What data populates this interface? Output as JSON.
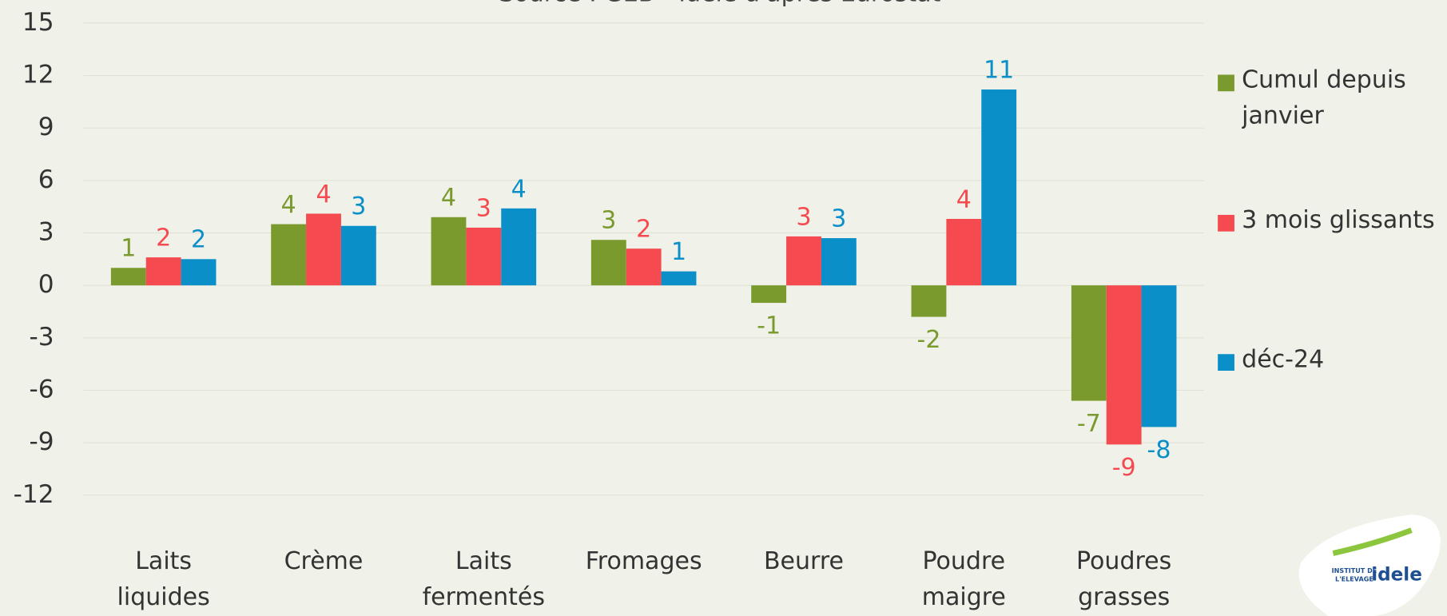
{
  "chart_data": {
    "type": "bar",
    "subtitle": "Source : GEB - Idele d'après Eurostat",
    "categories": [
      "Laits liquides",
      "Crème",
      "Laits fermentés",
      "Fromages",
      "Beurre",
      "Poudre maigre",
      "Poudres grasses"
    ],
    "series": [
      {
        "name": "Cumul depuis janvier",
        "color": "#7a9a2e",
        "values": [
          1.0,
          3.5,
          3.9,
          2.6,
          -1.0,
          -1.8,
          -6.6
        ],
        "value_labels": [
          "1",
          "4",
          "4",
          "3",
          "-1",
          "-2",
          "-7"
        ]
      },
      {
        "name": "3 mois glissants",
        "color": "#f44a50",
        "values": [
          1.6,
          4.1,
          3.3,
          2.1,
          2.8,
          3.8,
          -9.1
        ],
        "value_labels": [
          "2",
          "4",
          "3",
          "2",
          "3",
          "4",
          "-9"
        ]
      },
      {
        "name": "déc-24",
        "color": "#0b8fc8",
        "values": [
          1.5,
          3.4,
          4.4,
          0.8,
          2.7,
          11.2,
          -8.1
        ],
        "value_labels": [
          "2",
          "3",
          "4",
          "1",
          "3",
          "11",
          "-8"
        ]
      }
    ],
    "ylim": [
      -12,
      15
    ],
    "yticks": [
      -12,
      -9,
      -6,
      -3,
      0,
      3,
      6,
      9,
      12,
      15
    ],
    "grid": true,
    "legend": "right",
    "logo": {
      "line1": "INSTITUT DE",
      "line2": "L'ELEVAGE",
      "brand": "idele"
    }
  }
}
